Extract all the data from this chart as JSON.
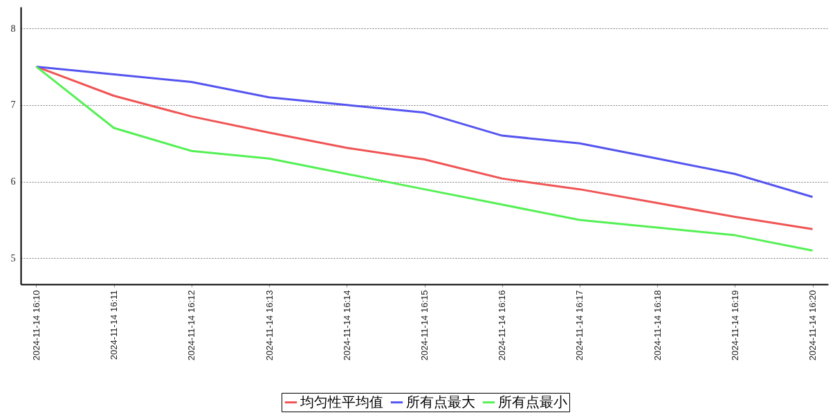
{
  "chart_data": {
    "type": "line",
    "categories": [
      "2024-11-14 16:10",
      "2024-11-14 16:11",
      "2024-11-14 16:12",
      "2024-11-14 16:13",
      "2024-11-14 16:14",
      "2024-11-14 16:15",
      "2024-11-14 16:16",
      "2024-11-14 16:17",
      "2024-11-14 16:18",
      "2024-11-14 16:19",
      "2024-11-14 16:20"
    ],
    "series": [
      {
        "name": "均匀性平均值",
        "color": "#f05454",
        "values": [
          7.5,
          7.12,
          6.85,
          6.64,
          6.44,
          6.29,
          6.04,
          5.9,
          5.72,
          5.54,
          5.38
        ]
      },
      {
        "name": "所有点最大",
        "color": "#5454f0",
        "values": [
          7.5,
          7.4,
          7.3,
          7.1,
          7.0,
          6.9,
          6.6,
          6.5,
          6.3,
          6.1,
          5.8
        ]
      },
      {
        "name": "所有点最小",
        "color": "#54f054",
        "values": [
          7.5,
          6.7,
          6.4,
          6.3,
          6.1,
          5.9,
          5.7,
          5.5,
          5.4,
          5.3,
          5.1
        ]
      }
    ],
    "ylim": [
      4.66,
      8.28
    ],
    "yticks": [
      5,
      6,
      7,
      8
    ],
    "grid": "y",
    "legend": "bottom",
    "line_style": "solid"
  }
}
